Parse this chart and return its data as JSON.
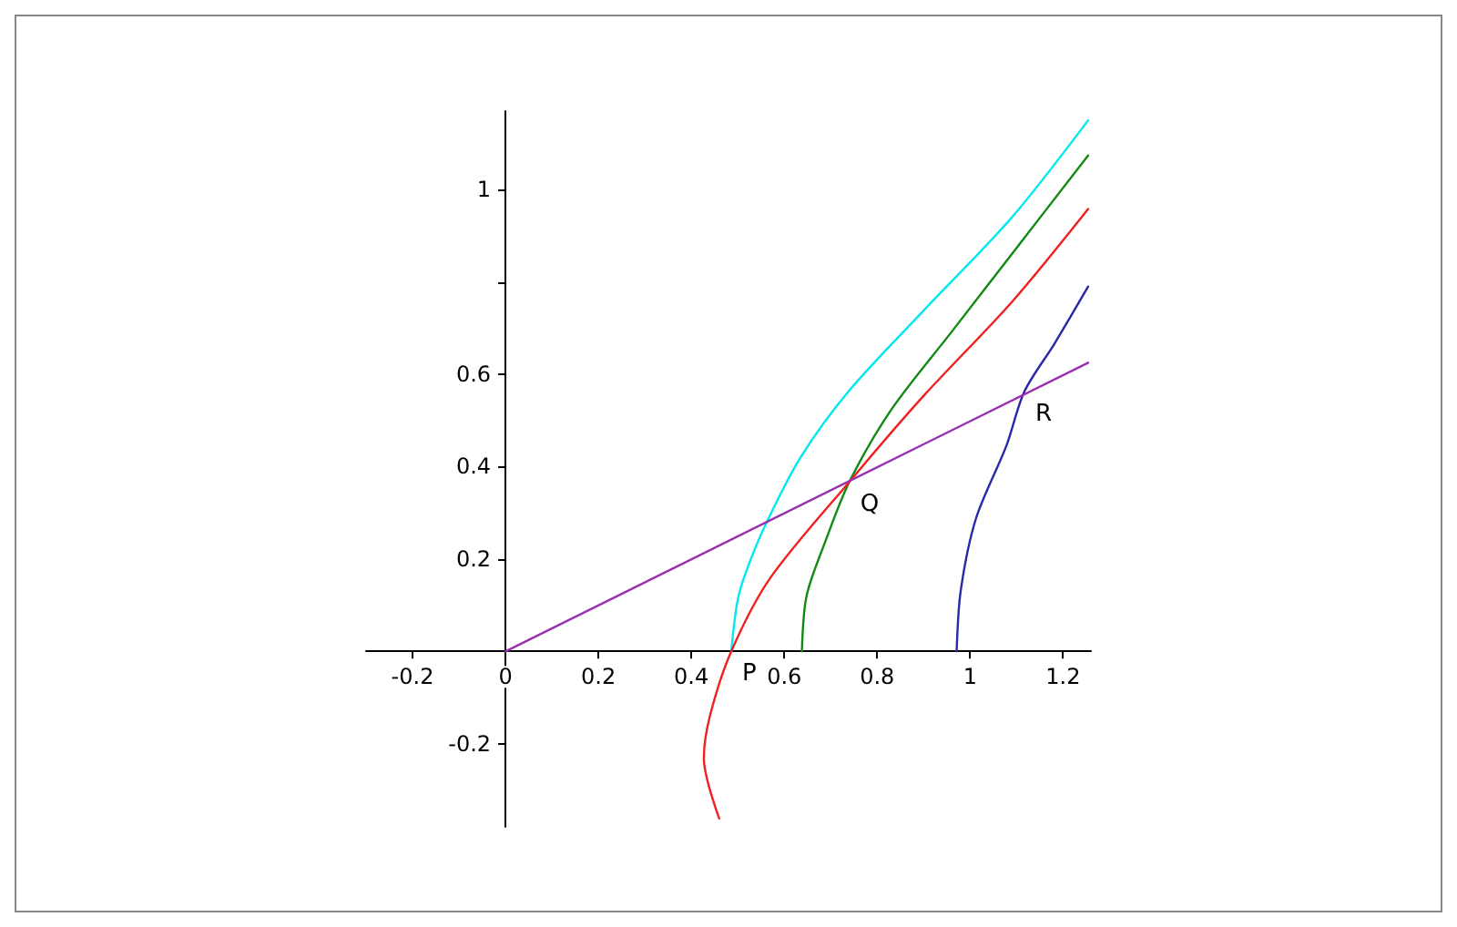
{
  "chart_data": {
    "type": "line",
    "xlim": [
      -0.3,
      1.26
    ],
    "ylim": [
      -0.38,
      1.17
    ],
    "xticks": [
      -0.2,
      0,
      0.2,
      0.4,
      0.6,
      0.8,
      1,
      1.2
    ],
    "yticks": [
      -0.2,
      0.2,
      0.4,
      0.6,
      {
        "value": 0.8,
        "label": null
      },
      1
    ],
    "marker": "none",
    "line_style": "solid",
    "series": [
      {
        "color": "#00e8f0",
        "x": [
          0.486,
          0.499,
          0.518,
          0.561,
          0.635,
          0.74,
          0.896,
          1.09,
          1.254
        ],
        "values": [
          0,
          0.107,
          0.173,
          0.277,
          0.42,
          0.565,
          0.734,
          0.94,
          1.15
        ]
      },
      {
        "color": "#108a10",
        "x": [
          0.638,
          0.648,
          0.688,
          0.74,
          0.83,
          0.961,
          1.091,
          1.254
        ],
        "values": [
          0,
          0.12,
          0.237,
          0.367,
          0.523,
          0.693,
          0.862,
          1.074
        ]
      },
      {
        "color": "#f02020",
        "x": [
          0.46,
          0.427,
          0.44,
          0.486,
          0.57,
          0.74,
          0.896,
          1.091,
          1.254
        ],
        "values": [
          -0.362,
          -0.232,
          -0.14,
          0,
          0.159,
          0.367,
          0.549,
          0.758,
          0.958
        ]
      },
      {
        "color": "#2828a8",
        "x": [
          0.971,
          0.98,
          1.013,
          1.078,
          1.117,
          1.182,
          1.254
        ],
        "values": [
          0,
          0.133,
          0.289,
          0.445,
          0.563,
          0.667,
          0.79
        ]
      },
      {
        "color": "#9a30b0",
        "x": [
          0,
          1.254
        ],
        "values": [
          0,
          0.625
        ]
      }
    ],
    "annotations": [
      {
        "text": "P",
        "x": 0.486,
        "y": 0
      },
      {
        "text": "Q",
        "x": 0.74,
        "y": 0.367
      },
      {
        "text": "R",
        "x": 1.117,
        "y": 0.563
      }
    ]
  }
}
